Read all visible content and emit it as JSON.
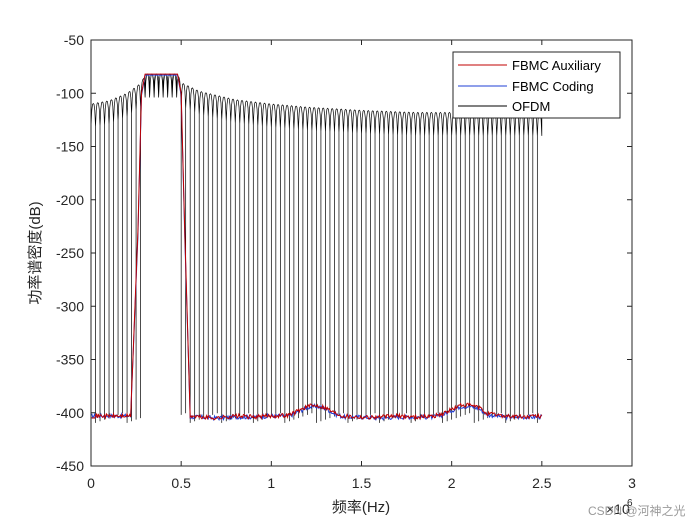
{
  "chart_data": {
    "type": "line",
    "xlabel": "频率(Hz)",
    "ylabel": "功率谱密度(dB)",
    "x_exponent_label": "×10",
    "x_exponent_power": "6",
    "xlim": [
      0,
      3
    ],
    "ylim": [
      -450,
      -50
    ],
    "xticks": [
      0,
      0.5,
      1,
      1.5,
      2,
      2.5,
      3
    ],
    "xtick_labels": [
      "0",
      "0.5",
      "1",
      "1.5",
      "2",
      "2.5",
      "3"
    ],
    "yticks": [
      -50,
      -100,
      -150,
      -200,
      -250,
      -300,
      -350,
      -400,
      -450
    ],
    "ytick_labels": [
      "-50",
      "-100",
      "-150",
      "-200",
      "-250",
      "-300",
      "-350",
      "-400",
      "-450"
    ],
    "legend": {
      "location": "top-right",
      "entries": [
        "FBMC Auxiliary",
        "FBMC Coding",
        "OFDM"
      ]
    },
    "series": [
      {
        "name": "FBMC Auxiliary",
        "color": "#c00000",
        "x": [
          0,
          0.22,
          0.26,
          0.28,
          0.3,
          0.48,
          0.5,
          0.52,
          0.55,
          0.6,
          0.7,
          0.8,
          0.9,
          1.0,
          1.1,
          1.15,
          1.2,
          1.25,
          1.3,
          1.35,
          1.4,
          1.5,
          1.6,
          1.7,
          1.8,
          1.9,
          1.95,
          2.0,
          2.05,
          2.1,
          2.15,
          2.2,
          2.3,
          2.4,
          2.5
        ],
        "y": [
          -403,
          -403,
          -230,
          -100,
          -82,
          -82,
          -100,
          -230,
          -403,
          -404,
          -405,
          -403,
          -404,
          -403,
          -402,
          -398,
          -394,
          -393,
          -395,
          -400,
          -403,
          -404,
          -404,
          -403,
          -404,
          -403,
          -401,
          -397,
          -393,
          -393,
          -395,
          -401,
          -403,
          -404,
          -403
        ]
      },
      {
        "name": "FBMC Coding",
        "color": "#1f3fd6",
        "x": [
          0,
          0.22,
          0.26,
          0.28,
          0.3,
          0.48,
          0.5,
          0.52,
          0.55,
          0.6,
          0.7,
          0.8,
          0.9,
          1.0,
          1.1,
          1.15,
          1.2,
          1.25,
          1.3,
          1.35,
          1.4,
          1.5,
          1.6,
          1.7,
          1.8,
          1.9,
          1.95,
          2.0,
          2.05,
          2.1,
          2.15,
          2.2,
          2.3,
          2.4,
          2.5
        ],
        "y": [
          -403,
          -403,
          -235,
          -102,
          -83,
          -83,
          -102,
          -235,
          -404,
          -404,
          -405,
          -404,
          -404,
          -403,
          -403,
          -399,
          -395,
          -394,
          -396,
          -401,
          -404,
          -404,
          -405,
          -404,
          -404,
          -404,
          -402,
          -398,
          -394,
          -394,
          -396,
          -402,
          -404,
          -404,
          -404
        ]
      },
      {
        "name": "OFDM",
        "color": "#000000",
        "envelope_x": [
          0,
          0.1,
          0.2,
          0.28,
          0.3,
          0.48,
          0.5,
          0.6,
          0.8,
          1.0,
          1.2,
          1.5,
          1.8,
          2.0,
          2.3,
          2.5
        ],
        "envelope_y": [
          -110,
          -107,
          -100,
          -90,
          -82,
          -82,
          -90,
          -98,
          -106,
          -110,
          -113,
          -116,
          -118,
          -118,
          -118,
          -118
        ],
        "notch_floor_dB": -405
      }
    ]
  },
  "watermark": "CSDN @河神之光"
}
